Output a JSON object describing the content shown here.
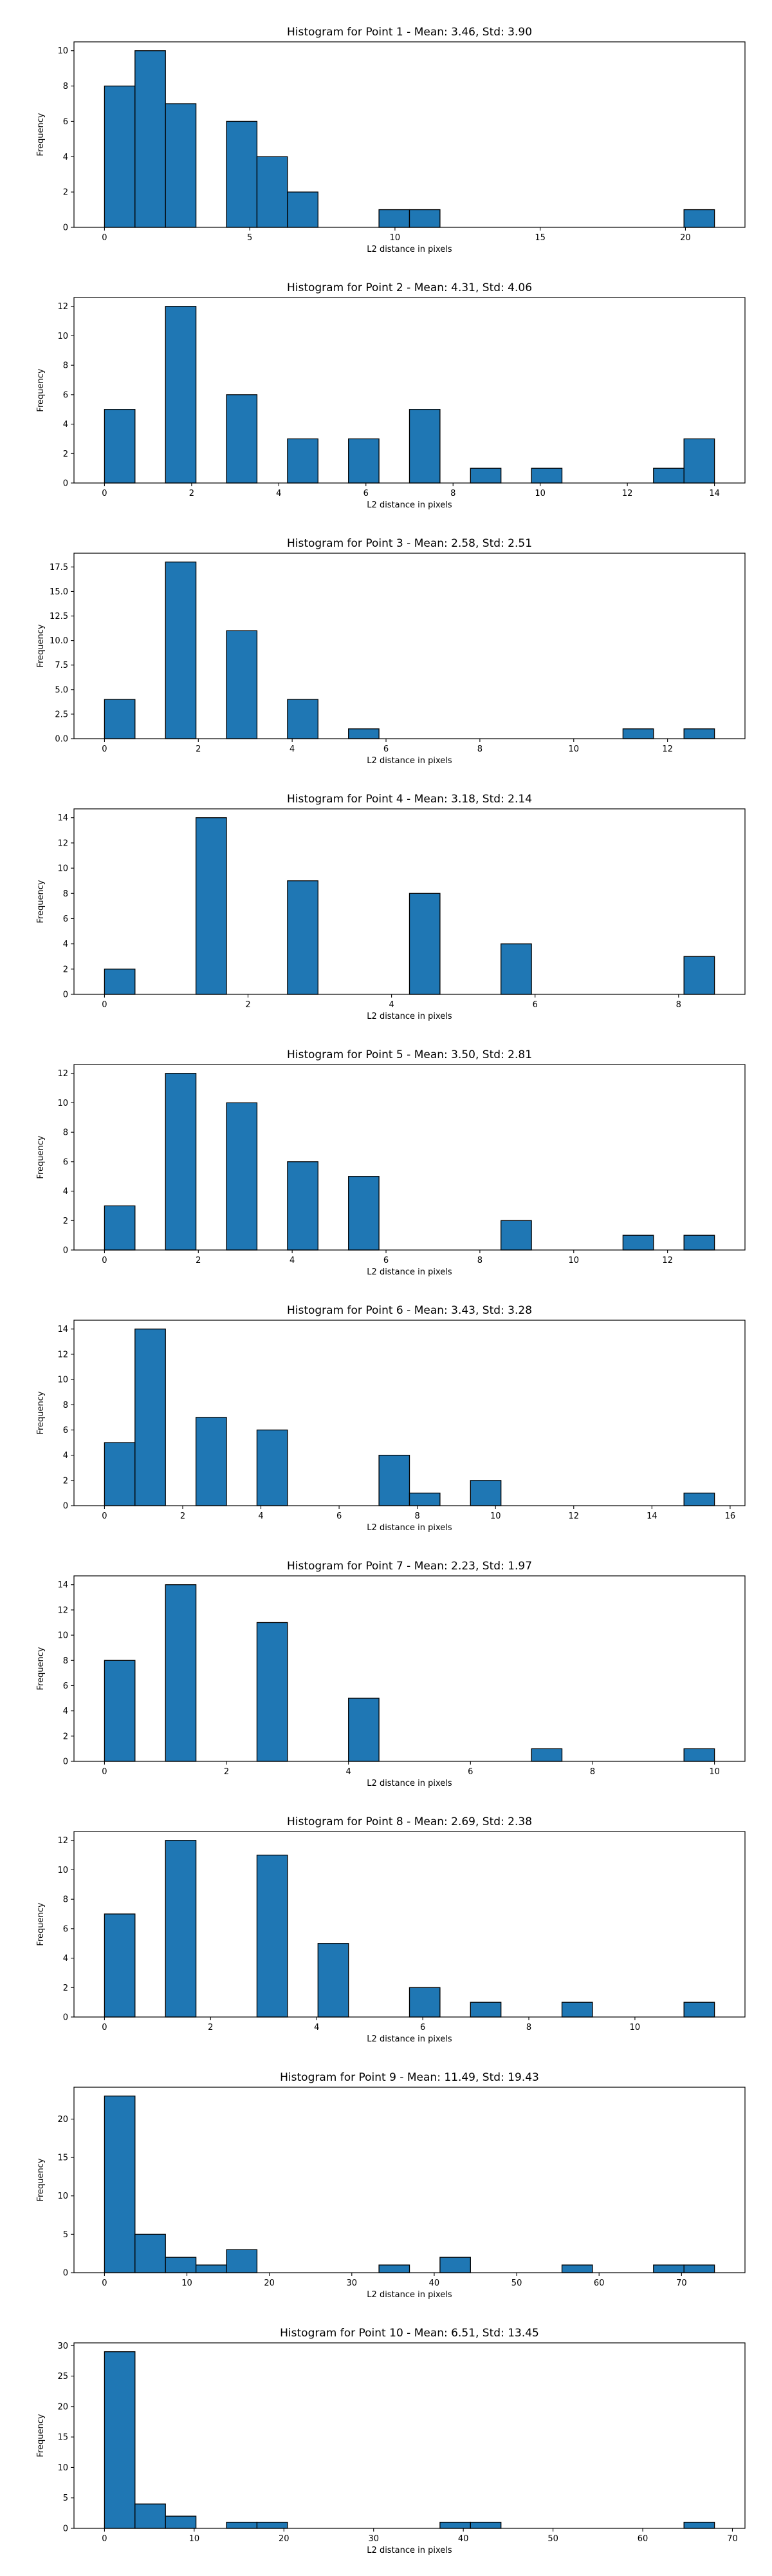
{
  "figure": {
    "background": "#ffffff",
    "bar_color": "#1f77b4",
    "edge_color": "#000000"
  },
  "chart_data": [
    {
      "type": "bar",
      "title": "Histogram for Point 1 - Mean: 3.46, Std: 3.90",
      "xlabel": "L2 distance in pixels",
      "ylabel": "Frequency",
      "xlim": [
        -1.05,
        22.05
      ],
      "ylim": [
        0,
        10.5
      ],
      "xticks": [
        0,
        5,
        10,
        15,
        20
      ],
      "yticks": [
        0,
        2,
        4,
        6,
        8,
        10
      ],
      "bins": [
        {
          "x0": 0.0,
          "x1": 1.05,
          "value": 8
        },
        {
          "x0": 1.05,
          "x1": 2.1,
          "value": 10
        },
        {
          "x0": 2.1,
          "x1": 3.15,
          "value": 7
        },
        {
          "x0": 4.2,
          "x1": 5.25,
          "value": 6
        },
        {
          "x0": 5.25,
          "x1": 6.3,
          "value": 4
        },
        {
          "x0": 6.3,
          "x1": 7.35,
          "value": 2
        },
        {
          "x0": 9.45,
          "x1": 10.5,
          "value": 1
        },
        {
          "x0": 10.5,
          "x1": 11.55,
          "value": 1
        },
        {
          "x0": 19.95,
          "x1": 21.0,
          "value": 1
        }
      ]
    },
    {
      "type": "bar",
      "title": "Histogram for Point 2 - Mean: 4.31, Std: 4.06",
      "xlabel": "L2 distance in pixels",
      "ylabel": "Frequency",
      "xlim": [
        -0.7,
        14.7
      ],
      "ylim": [
        0,
        12.6
      ],
      "xticks": [
        0,
        2,
        4,
        6,
        8,
        10,
        12,
        14
      ],
      "yticks": [
        0,
        2,
        4,
        6,
        8,
        10,
        12
      ],
      "bins": [
        {
          "x0": 0.0,
          "x1": 0.7,
          "value": 5
        },
        {
          "x0": 1.4,
          "x1": 2.1,
          "value": 12
        },
        {
          "x0": 2.8,
          "x1": 3.5,
          "value": 6
        },
        {
          "x0": 4.2,
          "x1": 4.9,
          "value": 3
        },
        {
          "x0": 5.6,
          "x1": 6.3,
          "value": 3
        },
        {
          "x0": 7.0,
          "x1": 7.7,
          "value": 5
        },
        {
          "x0": 8.4,
          "x1": 9.1,
          "value": 1
        },
        {
          "x0": 9.8,
          "x1": 10.5,
          "value": 1
        },
        {
          "x0": 12.6,
          "x1": 13.3,
          "value": 1
        },
        {
          "x0": 13.3,
          "x1": 14.0,
          "value": 3
        }
      ]
    },
    {
      "type": "bar",
      "title": "Histogram for Point 3 - Mean: 2.58, Std: 2.51",
      "xlabel": "L2 distance in pixels",
      "ylabel": "Frequency",
      "xlim": [
        -0.65,
        13.65
      ],
      "ylim": [
        0,
        18.9
      ],
      "xticks": [
        0,
        2,
        4,
        6,
        8,
        10,
        12
      ],
      "xtick_labels": [
        "0",
        "2",
        "4",
        "6",
        "8",
        "10",
        "12"
      ],
      "yticks": [
        0,
        2.5,
        5,
        7.5,
        10,
        12.5,
        15,
        17.5
      ],
      "ytick_labels": [
        "0.0",
        "2.5",
        "5.0",
        "7.5",
        "10.0",
        "12.5",
        "15.0",
        "17.5"
      ],
      "bins": [
        {
          "x0": 0.0,
          "x1": 0.65,
          "value": 4
        },
        {
          "x0": 1.3,
          "x1": 1.95,
          "value": 18
        },
        {
          "x0": 2.6,
          "x1": 3.25,
          "value": 11
        },
        {
          "x0": 3.9,
          "x1": 4.55,
          "value": 4
        },
        {
          "x0": 5.2,
          "x1": 5.85,
          "value": 1
        },
        {
          "x0": 11.05,
          "x1": 11.7,
          "value": 1
        },
        {
          "x0": 12.35,
          "x1": 13.0,
          "value": 1
        }
      ]
    },
    {
      "type": "bar",
      "title": "Histogram for Point 4 - Mean: 3.18, Std: 2.14",
      "xlabel": "L2 distance in pixels",
      "ylabel": "Frequency",
      "xlim": [
        -0.425,
        8.925
      ],
      "ylim": [
        0,
        14.7
      ],
      "xticks": [
        0,
        2,
        4,
        6,
        8
      ],
      "yticks": [
        0,
        2,
        4,
        6,
        8,
        10,
        12,
        14
      ],
      "bins": [
        {
          "x0": 0.0,
          "x1": 0.425,
          "value": 2
        },
        {
          "x0": 1.275,
          "x1": 1.7,
          "value": 14
        },
        {
          "x0": 2.55,
          "x1": 2.975,
          "value": 9
        },
        {
          "x0": 4.25,
          "x1": 4.675,
          "value": 8
        },
        {
          "x0": 5.525,
          "x1": 5.95,
          "value": 4
        },
        {
          "x0": 8.075,
          "x1": 8.5,
          "value": 3
        }
      ]
    },
    {
      "type": "bar",
      "title": "Histogram for Point 5 - Mean: 3.50, Std: 2.81",
      "xlabel": "L2 distance in pixels",
      "ylabel": "Frequency",
      "xlim": [
        -0.65,
        13.65
      ],
      "ylim": [
        0,
        12.6
      ],
      "xticks": [
        0,
        2,
        4,
        6,
        8,
        10,
        12
      ],
      "yticks": [
        0,
        2,
        4,
        6,
        8,
        10,
        12
      ],
      "bins": [
        {
          "x0": 0.0,
          "x1": 0.65,
          "value": 3
        },
        {
          "x0": 1.3,
          "x1": 1.95,
          "value": 12
        },
        {
          "x0": 2.6,
          "x1": 3.25,
          "value": 10
        },
        {
          "x0": 3.9,
          "x1": 4.55,
          "value": 6
        },
        {
          "x0": 5.2,
          "x1": 5.85,
          "value": 5
        },
        {
          "x0": 8.45,
          "x1": 9.1,
          "value": 2
        },
        {
          "x0": 11.05,
          "x1": 11.7,
          "value": 1
        },
        {
          "x0": 12.35,
          "x1": 13.0,
          "value": 1
        }
      ]
    },
    {
      "type": "bar",
      "title": "Histogram for Point 6 - Mean: 3.43, Std: 3.28",
      "xlabel": "L2 distance in pixels",
      "ylabel": "Frequency",
      "xlim": [
        -0.78,
        16.38
      ],
      "ylim": [
        0,
        14.7
      ],
      "xticks": [
        0,
        2,
        4,
        6,
        8,
        10,
        12,
        14,
        16
      ],
      "yticks": [
        0,
        2,
        4,
        6,
        8,
        10,
        12,
        14
      ],
      "bins": [
        {
          "x0": 0.0,
          "x1": 0.78,
          "value": 5
        },
        {
          "x0": 0.78,
          "x1": 1.56,
          "value": 14
        },
        {
          "x0": 2.34,
          "x1": 3.12,
          "value": 7
        },
        {
          "x0": 3.9,
          "x1": 4.68,
          "value": 6
        },
        {
          "x0": 7.02,
          "x1": 7.8,
          "value": 4
        },
        {
          "x0": 7.8,
          "x1": 8.58,
          "value": 1
        },
        {
          "x0": 9.36,
          "x1": 10.14,
          "value": 2
        },
        {
          "x0": 14.82,
          "x1": 15.6,
          "value": 1
        }
      ]
    },
    {
      "type": "bar",
      "title": "Histogram for Point 7 - Mean: 2.23, Std: 1.97",
      "xlabel": "L2 distance in pixels",
      "ylabel": "Frequency",
      "xlim": [
        -0.5,
        10.5
      ],
      "ylim": [
        0,
        14.7
      ],
      "xticks": [
        0,
        2,
        4,
        6,
        8,
        10
      ],
      "yticks": [
        0,
        2,
        4,
        6,
        8,
        10,
        12,
        14
      ],
      "bins": [
        {
          "x0": 0.0,
          "x1": 0.5,
          "value": 8
        },
        {
          "x0": 1.0,
          "x1": 1.5,
          "value": 14
        },
        {
          "x0": 2.5,
          "x1": 3.0,
          "value": 11
        },
        {
          "x0": 4.0,
          "x1": 4.5,
          "value": 5
        },
        {
          "x0": 7.0,
          "x1": 7.5,
          "value": 1
        },
        {
          "x0": 9.5,
          "x1": 10.0,
          "value": 1
        }
      ]
    },
    {
      "type": "bar",
      "title": "Histogram for Point 8 - Mean: 2.69, Std: 2.38",
      "xlabel": "L2 distance in pixels",
      "ylabel": "Frequency",
      "xlim": [
        -0.575,
        12.075
      ],
      "ylim": [
        0,
        12.6
      ],
      "xticks": [
        0,
        2,
        4,
        6,
        8,
        10
      ],
      "yticks": [
        0,
        2,
        4,
        6,
        8,
        10,
        12
      ],
      "bins": [
        {
          "x0": 0.0,
          "x1": 0.575,
          "value": 7
        },
        {
          "x0": 1.15,
          "x1": 1.725,
          "value": 12
        },
        {
          "x0": 2.875,
          "x1": 3.45,
          "value": 11
        },
        {
          "x0": 4.025,
          "x1": 4.6,
          "value": 5
        },
        {
          "x0": 5.75,
          "x1": 6.325,
          "value": 2
        },
        {
          "x0": 6.9,
          "x1": 7.475,
          "value": 1
        },
        {
          "x0": 8.625,
          "x1": 9.2,
          "value": 1
        },
        {
          "x0": 10.925,
          "x1": 11.5,
          "value": 1
        }
      ]
    },
    {
      "type": "bar",
      "title": "Histogram for Point 9 - Mean: 11.49, Std: 19.43",
      "xlabel": "L2 distance in pixels",
      "ylabel": "Frequency",
      "xlim": [
        -3.7,
        77.7
      ],
      "ylim": [
        0,
        24.15
      ],
      "xticks": [
        0,
        10,
        20,
        30,
        40,
        50,
        60,
        70
      ],
      "yticks": [
        0,
        5,
        10,
        15,
        20
      ],
      "bins": [
        {
          "x0": 0.0,
          "x1": 3.7,
          "value": 23
        },
        {
          "x0": 3.7,
          "x1": 7.4,
          "value": 5
        },
        {
          "x0": 7.4,
          "x1": 11.1,
          "value": 2
        },
        {
          "x0": 11.1,
          "x1": 14.8,
          "value": 1
        },
        {
          "x0": 14.8,
          "x1": 18.5,
          "value": 3
        },
        {
          "x0": 33.3,
          "x1": 37.0,
          "value": 1
        },
        {
          "x0": 40.7,
          "x1": 44.4,
          "value": 2
        },
        {
          "x0": 55.5,
          "x1": 59.2,
          "value": 1
        },
        {
          "x0": 66.6,
          "x1": 70.3,
          "value": 1
        },
        {
          "x0": 70.3,
          "x1": 74.0,
          "value": 1
        }
      ]
    },
    {
      "type": "bar",
      "title": "Histogram for Point 10 - Mean: 6.51, Std: 13.45",
      "xlabel": "L2 distance in pixels",
      "ylabel": "Frequency",
      "xlim": [
        -3.4,
        71.4
      ],
      "ylim": [
        0,
        30.45
      ],
      "xticks": [
        0,
        10,
        20,
        30,
        40,
        50,
        60,
        70
      ],
      "yticks": [
        0,
        5,
        10,
        15,
        20,
        25,
        30
      ],
      "bins": [
        {
          "x0": 0.0,
          "x1": 3.4,
          "value": 29
        },
        {
          "x0": 3.4,
          "x1": 6.8,
          "value": 4
        },
        {
          "x0": 6.8,
          "x1": 10.2,
          "value": 2
        },
        {
          "x0": 13.6,
          "x1": 17.0,
          "value": 1
        },
        {
          "x0": 17.0,
          "x1": 20.4,
          "value": 1
        },
        {
          "x0": 37.4,
          "x1": 40.8,
          "value": 1
        },
        {
          "x0": 40.8,
          "x1": 44.2,
          "value": 1
        },
        {
          "x0": 64.6,
          "x1": 68.0,
          "value": 1
        }
      ]
    }
  ]
}
